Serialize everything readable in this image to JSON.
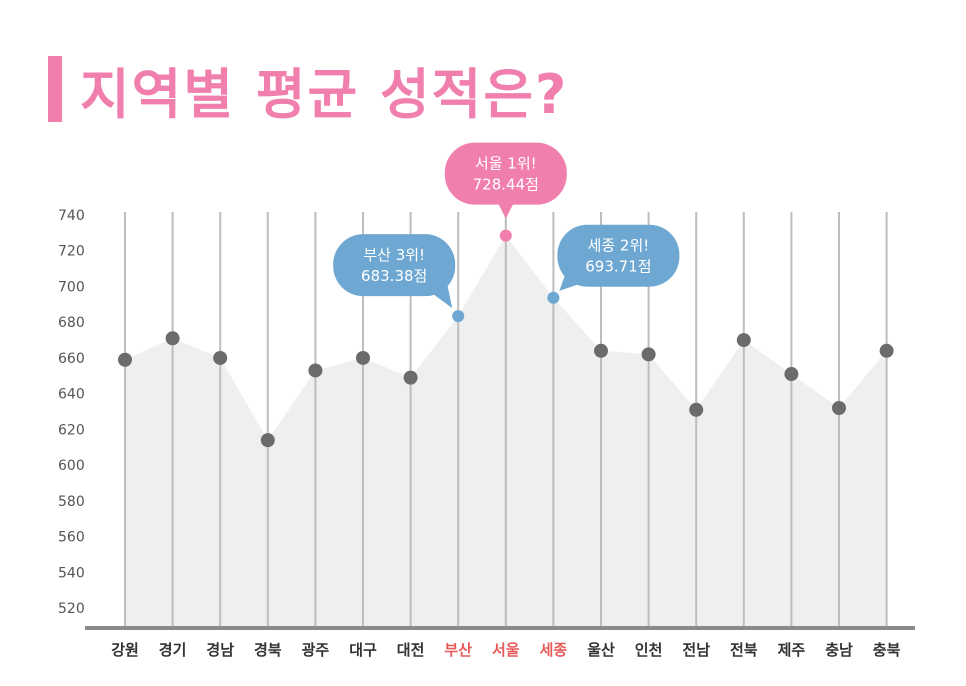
{
  "title": "지역별 평균 성적은?",
  "colors": {
    "title": "#f07fae",
    "area": "#efefef",
    "point": "#6b6b6b",
    "highlight_pink": "#f07fae",
    "highlight_blue": "#6ea8d2",
    "highlight_label": "#e85b5b",
    "gridline": "#bdbdbd",
    "axis": "#8a8a8a"
  },
  "chart_data": {
    "type": "area",
    "categories": [
      "강원",
      "경기",
      "경남",
      "경북",
      "광주",
      "대구",
      "대전",
      "부산",
      "서울",
      "세종",
      "울산",
      "인천",
      "전남",
      "전북",
      "제주",
      "충남",
      "충북"
    ],
    "values": [
      659,
      671,
      660,
      614,
      653,
      660,
      649,
      683.38,
      728.44,
      693.71,
      664,
      662,
      631,
      670,
      651,
      632,
      664
    ],
    "ylim": [
      510,
      740
    ],
    "yticks": [
      740,
      720,
      700,
      680,
      660,
      640,
      620,
      600,
      580,
      560,
      540,
      520
    ],
    "highlighted": [
      {
        "index": 8,
        "color": "pink",
        "line1": "서울 1위!",
        "line2": "728.44점"
      },
      {
        "index": 7,
        "color": "blue",
        "line1": "부산 3위!",
        "line2": "683.38점"
      },
      {
        "index": 9,
        "color": "blue",
        "line1": "세종 2위!",
        "line2": "693.71점"
      }
    ],
    "grid": false,
    "vertical_lines": true
  }
}
